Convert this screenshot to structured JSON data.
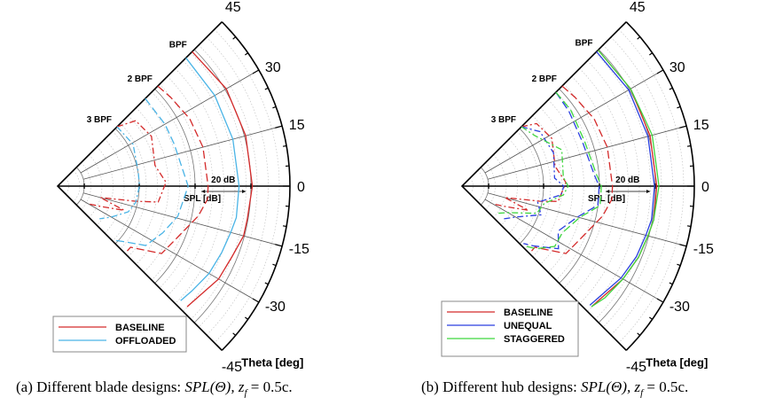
{
  "chart_data": [
    {
      "type": "polar-line",
      "panel": "a",
      "theta_label": "Theta [deg]",
      "r_label": "SPL [dB]",
      "scale_label": "20 dB",
      "scale_db": [
        85,
        105
      ],
      "theta_ticks": [
        45,
        30,
        15,
        0,
        -15,
        -30,
        -45
      ],
      "theta_range": [
        -45,
        45
      ],
      "rlim": [
        20,
        125
      ],
      "harmonic_labels": [
        "BPF",
        "2 BPF",
        "3 BPF"
      ],
      "legend": [
        {
          "name": "BASELINE",
          "color": "#d42a2a"
        },
        {
          "name": "OFFLOADED",
          "color": "#4ab4e6"
        }
      ],
      "series": [
        {
          "name": "BASELINE",
          "harmonic": "BPF",
          "color": "#d42a2a",
          "dash": "solid",
          "theta": [
            45,
            30,
            15,
            0,
            -10,
            -15,
            -22,
            -30,
            -38,
            -43
          ],
          "spl": [
            106,
            108,
            108,
            108,
            107,
            107,
            105,
            104,
            101,
            100
          ]
        },
        {
          "name": "OFFLOADED",
          "harmonic": "BPF",
          "color": "#4ab4e6",
          "dash": "solid",
          "theta": [
            45,
            30,
            15,
            0,
            -10,
            -15,
            -22,
            -30,
            -38,
            -43
          ],
          "spl": [
            102,
            102,
            102,
            102,
            102,
            101,
            100,
            99,
            97,
            96
          ]
        },
        {
          "name": "BASELINE",
          "harmonic": "2 BPF",
          "color": "#d42a2a",
          "dash": "dash",
          "theta": [
            45,
            38,
            27,
            15,
            0,
            -5,
            -12,
            -23,
            -33,
            -40,
            -43
          ],
          "spl": [
            84,
            85,
            87,
            88,
            88,
            88,
            85,
            79,
            76,
            63,
            63
          ]
        },
        {
          "name": "OFFLOADED",
          "harmonic": "2 BPF",
          "color": "#4ab4e6",
          "dash": "dash",
          "theta": [
            45,
            30,
            20,
            0,
            -14,
            -24,
            -34,
            -40,
            -43
          ],
          "spl": [
            76,
            76,
            76,
            79,
            76,
            72,
            68,
            59,
            56
          ]
        },
        {
          "name": "BASELINE",
          "harmonic": "3 BPF",
          "color": "#d42a2a",
          "dash": "dashdot",
          "theta": [
            45,
            40,
            28,
            12,
            2,
            -9,
            -11,
            -15,
            -20,
            -25,
            -30
          ],
          "spl": [
            58,
            66,
            68,
            65,
            69,
            66,
            56,
            40,
            52,
            42,
            36
          ]
        },
        {
          "name": "OFFLOADED",
          "harmonic": "3 BPF",
          "color": "#4ab4e6",
          "dash": "dashdot",
          "theta": [
            45,
            29,
            10,
            0,
            -12,
            -20,
            -30,
            -38
          ],
          "spl": [
            58,
            59,
            57,
            57,
            56,
            54,
            48,
            44
          ]
        }
      ]
    },
    {
      "type": "polar-line",
      "panel": "b",
      "theta_label": "Theta [deg]",
      "r_label": "SPL [dB]",
      "scale_label": "20 dB",
      "scale_db": [
        85,
        105
      ],
      "theta_ticks": [
        45,
        30,
        15,
        0,
        -15,
        -30,
        -45
      ],
      "theta_range": [
        -45,
        45
      ],
      "rlim": [
        20,
        125
      ],
      "harmonic_labels": [
        "BPF",
        "2 BPF",
        "3 BPF"
      ],
      "legend": [
        {
          "name": "BASELINE",
          "color": "#d42a2a"
        },
        {
          "name": "UNEQUAL",
          "color": "#2a3fe0"
        },
        {
          "name": "STAGGERED",
          "color": "#3ed63e"
        }
      ],
      "series": [
        {
          "name": "BASELINE",
          "harmonic": "BPF",
          "color": "#d42a2a",
          "dash": "solid",
          "theta": [
            45,
            30,
            15,
            0,
            -10,
            -15,
            -22,
            -30,
            -38,
            -43
          ],
          "spl": [
            107,
            108,
            108,
            108,
            108,
            107,
            106,
            104,
            101,
            100
          ]
        },
        {
          "name": "UNEQUAL",
          "harmonic": "BPF",
          "color": "#2a3fe0",
          "dash": "solid",
          "theta": [
            45,
            30,
            15,
            0,
            -10,
            -15,
            -22,
            -30,
            -38,
            -43
          ],
          "spl": [
            106,
            107,
            107,
            107,
            107,
            106,
            105,
            103,
            100,
            99
          ]
        },
        {
          "name": "STAGGERED",
          "harmonic": "BPF",
          "color": "#3ed63e",
          "dash": "solid",
          "theta": [
            45,
            30,
            15,
            0,
            -10,
            -15,
            -22,
            -30,
            -38,
            -43
          ],
          "spl": [
            107,
            108,
            109,
            109,
            108,
            107,
            106,
            104,
            102,
            100
          ]
        },
        {
          "name": "BASELINE",
          "harmonic": "2 BPF",
          "color": "#d42a2a",
          "dash": "dash",
          "theta": [
            45,
            38,
            27,
            15,
            0,
            -5,
            -12,
            -23,
            -33,
            -40,
            -43
          ],
          "spl": [
            84,
            85,
            87,
            88,
            88,
            88,
            85,
            79,
            76,
            63,
            63
          ]
        },
        {
          "name": "UNEQUAL",
          "harmonic": "2 BPF",
          "color": "#2a3fe0",
          "dash": "dash",
          "theta": [
            45,
            35,
            20,
            5,
            0,
            -8,
            -15,
            -25,
            -33,
            -40,
            -43
          ],
          "spl": [
            80,
            79,
            78,
            80,
            82,
            82,
            74,
            68,
            72,
            62,
            58
          ]
        },
        {
          "name": "STAGGERED",
          "harmonic": "2 BPF",
          "color": "#3ed63e",
          "dash": "dash",
          "theta": [
            45,
            35,
            20,
            5,
            0,
            -8,
            -15,
            -25,
            -33,
            -40,
            -43
          ],
          "spl": [
            80,
            80,
            79,
            81,
            83,
            83,
            75,
            70,
            70,
            64,
            60
          ]
        },
        {
          "name": "BASELINE",
          "harmonic": "3 BPF",
          "color": "#d42a2a",
          "dash": "dashdot",
          "theta": [
            45,
            40,
            28,
            12,
            2,
            -9,
            -11,
            -15,
            -20,
            -25,
            -30
          ],
          "spl": [
            58,
            64,
            66,
            63,
            67,
            64,
            56,
            40,
            52,
            42,
            36
          ]
        },
        {
          "name": "UNEQUAL",
          "harmonic": "3 BPF",
          "color": "#2a3fe0",
          "dash": "dashdot",
          "theta": [
            45,
            35,
            20,
            5,
            0,
            -5,
            -12,
            -20,
            -30,
            -38
          ],
          "spl": [
            58,
            63,
            64,
            62,
            66,
            65,
            55,
            58,
            48,
            44
          ]
        },
        {
          "name": "STAGGERED",
          "harmonic": "3 BPF",
          "color": "#3ed63e",
          "dash": "dashdot",
          "theta": [
            45,
            35,
            20,
            5,
            0,
            -5,
            -12,
            -20,
            -30,
            -38
          ],
          "spl": [
            58,
            60,
            68,
            66,
            68,
            66,
            58,
            56,
            44,
            40
          ]
        }
      ]
    }
  ],
  "captions": [
    {
      "label": "(a)",
      "text": "Different blade designs:",
      "math": "SPL(Θ), z",
      "sub": "f",
      "rest": "= 0.5c."
    },
    {
      "label": "(b)",
      "text": "Different hub designs:",
      "math": "SPL(Θ), z",
      "sub": "f",
      "rest": "= 0.5c."
    }
  ]
}
